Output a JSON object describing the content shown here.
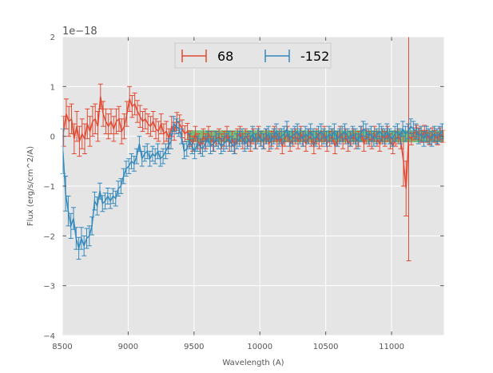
{
  "chart_data": {
    "type": "line",
    "xlabel": "Wavelength (A)",
    "ylabel": "Flux (erg/s/cm^2/A)",
    "y_offset_label": "1e−18",
    "xlim": [
      8500,
      11400
    ],
    "ylim": [
      -4,
      2
    ],
    "x_ticks": [
      8500,
      9000,
      9500,
      10000,
      10500,
      11000
    ],
    "x_tick_labels": [
      "8500",
      "9000",
      "9500",
      "10000",
      "10500",
      "11000"
    ],
    "y_ticks": [
      -4,
      -3,
      -2,
      -1,
      0,
      1,
      2
    ],
    "y_tick_labels": [
      "−4",
      "−3",
      "−2",
      "−1",
      "0",
      "1",
      "2"
    ],
    "grid": true,
    "legend": {
      "placement": "top-center",
      "entries": [
        "68",
        "-152"
      ]
    },
    "band": {
      "x_start": 9450,
      "x_end": 11400,
      "y_low": -0.12,
      "y_high": 0.12,
      "color": "#2ca02c"
    },
    "series": [
      {
        "name": "68",
        "color": "#E24A33",
        "x": [
          8510,
          8530,
          8550,
          8570,
          8590,
          8610,
          8630,
          8650,
          8670,
          8690,
          8710,
          8730,
          8750,
          8770,
          8790,
          8810,
          8830,
          8850,
          8870,
          8890,
          8910,
          8930,
          8950,
          8970,
          8990,
          9010,
          9030,
          9050,
          9070,
          9090,
          9110,
          9130,
          9150,
          9170,
          9190,
          9210,
          9230,
          9250,
          9270,
          9290,
          9310,
          9330,
          9350,
          9370,
          9390,
          9410,
          9430,
          9450,
          9470,
          9490,
          9510,
          9530,
          9550,
          9570,
          9590,
          9610,
          9630,
          9650,
          9670,
          9690,
          9710,
          9730,
          9750,
          9770,
          9790,
          9810,
          9830,
          9850,
          9870,
          9890,
          9910,
          9930,
          9950,
          9970,
          9990,
          10010,
          10030,
          10050,
          10070,
          10090,
          10110,
          10130,
          10150,
          10170,
          10190,
          10210,
          10230,
          10250,
          10270,
          10290,
          10310,
          10330,
          10350,
          10370,
          10390,
          10410,
          10430,
          10450,
          10470,
          10490,
          10510,
          10530,
          10550,
          10570,
          10590,
          10610,
          10630,
          10650,
          10670,
          10690,
          10710,
          10730,
          10750,
          10770,
          10790,
          10810,
          10830,
          10850,
          10870,
          10890,
          10910,
          10930,
          10950,
          10970,
          10990,
          11010,
          11030,
          11050,
          11070,
          11090,
          11110,
          11130,
          11150,
          11170,
          11190,
          11210,
          11230,
          11250,
          11270,
          11290,
          11310,
          11330,
          11350,
          11370,
          11390
        ],
        "y": [
          0.1,
          0.45,
          0.3,
          0.35,
          -0.05,
          0.2,
          -0.1,
          0.05,
          -0.05,
          0.25,
          0.1,
          0.3,
          0.35,
          0.2,
          0.8,
          0.45,
          0.3,
          0.2,
          0.3,
          0.15,
          0.3,
          0.35,
          0.1,
          0.2,
          0.45,
          0.75,
          0.6,
          0.65,
          0.5,
          0.4,
          0.3,
          0.35,
          0.25,
          0.2,
          0.3,
          0.15,
          0.1,
          0.25,
          0.05,
          0.1,
          -0.05,
          0.2,
          0.1,
          0.3,
          0.25,
          0.15,
          0.05,
          0.1,
          -0.05,
          -0.15,
          0.05,
          -0.1,
          -0.2,
          0.0,
          -0.1,
          0.05,
          -0.05,
          -0.15,
          -0.05,
          0.0,
          -0.1,
          -0.05,
          0.05,
          -0.15,
          -0.05,
          -0.2,
          0.0,
          0.05,
          -0.1,
          0.0,
          -0.05,
          -0.15,
          0.0,
          -0.1,
          0.05,
          -0.05,
          -0.1,
          0.0,
          -0.15,
          -0.05,
          0.05,
          -0.1,
          0.0,
          -0.2,
          -0.05,
          0.05,
          -0.15,
          -0.05,
          0.0,
          -0.1,
          0.05,
          -0.05,
          -0.15,
          0.0,
          -0.05,
          -0.2,
          0.0,
          -0.1,
          -0.05,
          0.05,
          -0.15,
          -0.05,
          0.0,
          -0.2,
          -0.05,
          0.05,
          -0.1,
          0.0,
          -0.15,
          -0.05,
          0.0,
          -0.1,
          -0.05,
          0.05,
          -0.15,
          0.0,
          -0.05,
          -0.1,
          0.05,
          -0.05,
          -0.15,
          0.0,
          -0.05,
          0.05,
          -0.1,
          -0.2,
          -0.05,
          0.0,
          -0.1,
          -0.5,
          -1.05,
          0.0,
          -0.05,
          0.05,
          0.1,
          0.05,
          0.0,
          0.1,
          0.0,
          -0.05,
          0.05,
          0.0,
          -0.05,
          0.05,
          0.0
        ],
        "err": [
          0.3,
          0.3,
          0.3,
          0.3,
          0.3,
          0.3,
          0.3,
          0.3,
          0.3,
          0.3,
          0.3,
          0.3,
          0.3,
          0.3,
          0.25,
          0.25,
          0.25,
          0.25,
          0.25,
          0.25,
          0.25,
          0.25,
          0.25,
          0.25,
          0.25,
          0.25,
          0.22,
          0.22,
          0.22,
          0.22,
          0.2,
          0.2,
          0.2,
          0.2,
          0.2,
          0.2,
          0.2,
          0.2,
          0.2,
          0.2,
          0.2,
          0.2,
          0.18,
          0.18,
          0.18,
          0.18,
          0.16,
          0.16,
          0.16,
          0.15,
          0.15,
          0.15,
          0.15,
          0.15,
          0.15,
          0.15,
          0.15,
          0.15,
          0.15,
          0.15,
          0.15,
          0.15,
          0.15,
          0.15,
          0.15,
          0.15,
          0.15,
          0.15,
          0.15,
          0.15,
          0.15,
          0.15,
          0.15,
          0.15,
          0.15,
          0.15,
          0.15,
          0.15,
          0.15,
          0.15,
          0.15,
          0.15,
          0.15,
          0.15,
          0.15,
          0.15,
          0.15,
          0.15,
          0.15,
          0.15,
          0.15,
          0.15,
          0.15,
          0.15,
          0.15,
          0.15,
          0.15,
          0.15,
          0.15,
          0.15,
          0.15,
          0.15,
          0.15,
          0.15,
          0.15,
          0.15,
          0.15,
          0.15,
          0.15,
          0.15,
          0.15,
          0.15,
          0.15,
          0.15,
          0.15,
          0.15,
          0.15,
          0.15,
          0.15,
          0.15,
          0.15,
          0.15,
          0.15,
          0.15,
          0.15,
          0.15,
          0.15,
          0.15,
          0.15,
          0.5,
          0.55,
          2.5,
          0.12,
          0.12,
          0.12,
          0.12,
          0.12,
          0.12,
          0.12,
          0.12,
          0.12,
          0.12,
          0.12,
          0.12,
          0.12
        ]
      },
      {
        "name": "-152",
        "color": "#348ABD",
        "x": [
          8505,
          8525,
          8545,
          8565,
          8585,
          8605,
          8625,
          8645,
          8665,
          8685,
          8705,
          8725,
          8745,
          8765,
          8785,
          8805,
          8825,
          8845,
          8865,
          8885,
          8905,
          8925,
          8945,
          8965,
          8985,
          9005,
          9025,
          9045,
          9065,
          9085,
          9105,
          9125,
          9145,
          9165,
          9185,
          9205,
          9225,
          9245,
          9265,
          9285,
          9305,
          9325,
          9345,
          9365,
          9385,
          9405,
          9425,
          9445,
          9465,
          9485,
          9505,
          9525,
          9545,
          9565,
          9585,
          9605,
          9625,
          9645,
          9665,
          9685,
          9705,
          9725,
          9745,
          9765,
          9785,
          9805,
          9825,
          9845,
          9865,
          9885,
          9905,
          9925,
          9945,
          9965,
          9985,
          10005,
          10025,
          10045,
          10065,
          10085,
          10105,
          10125,
          10145,
          10165,
          10185,
          10205,
          10225,
          10245,
          10265,
          10285,
          10305,
          10325,
          10345,
          10365,
          10385,
          10405,
          10425,
          10445,
          10465,
          10485,
          10505,
          10525,
          10545,
          10565,
          10585,
          10605,
          10625,
          10645,
          10665,
          10685,
          10705,
          10725,
          10745,
          10765,
          10785,
          10805,
          10825,
          10845,
          10865,
          10885,
          10905,
          10925,
          10945,
          10965,
          10985,
          11005,
          11025,
          11045,
          11065,
          11085,
          11105,
          11125,
          11145,
          11165,
          11185,
          11205,
          11225,
          11245,
          11265,
          11285,
          11305,
          11325,
          11345,
          11365,
          11385
        ],
        "y": [
          -0.3,
          -1.15,
          -1.5,
          -1.8,
          -1.65,
          -2.05,
          -2.25,
          -2.05,
          -2.2,
          -2.05,
          -2.0,
          -1.8,
          -1.3,
          -1.4,
          -1.1,
          -1.35,
          -1.3,
          -1.2,
          -1.3,
          -1.2,
          -1.25,
          -1.05,
          -1.0,
          -0.8,
          -0.65,
          -0.6,
          -0.5,
          -0.55,
          -0.4,
          -0.15,
          -0.45,
          -0.35,
          -0.3,
          -0.45,
          -0.35,
          -0.4,
          -0.3,
          -0.45,
          -0.4,
          -0.3,
          -0.2,
          -0.1,
          0.25,
          0.2,
          0.15,
          0.0,
          -0.3,
          -0.25,
          -0.1,
          -0.2,
          -0.3,
          -0.15,
          -0.2,
          -0.25,
          -0.15,
          -0.05,
          -0.2,
          -0.15,
          -0.05,
          -0.1,
          -0.2,
          -0.15,
          -0.1,
          -0.05,
          -0.15,
          -0.2,
          -0.1,
          -0.05,
          0.0,
          -0.15,
          -0.1,
          -0.05,
          0.05,
          -0.1,
          0.0,
          -0.05,
          -0.1,
          0.0,
          0.05,
          -0.1,
          0.0,
          0.1,
          -0.05,
          0.0,
          0.05,
          0.15,
          -0.05,
          0.0,
          0.05,
          0.1,
          0.0,
          -0.05,
          0.05,
          0.0,
          0.1,
          0.0,
          -0.05,
          0.05,
          0.1,
          0.0,
          -0.05,
          0.05,
          0.0,
          0.1,
          -0.05,
          0.0,
          0.05,
          0.1,
          0.0,
          -0.05,
          0.05,
          0.0,
          -0.1,
          0.05,
          0.15,
          0.1,
          0.0,
          0.05,
          -0.05,
          0.0,
          0.1,
          0.05,
          0.0,
          0.1,
          0.0,
          -0.05,
          0.05,
          0.1,
          0.0,
          0.15,
          0.05,
          0.1,
          0.2,
          0.15,
          0.1,
          0.0,
          0.05,
          -0.05,
          0.05,
          0.0,
          -0.05,
          0.05,
          0.0,
          0.05,
          0.1
        ],
        "err": [
          0.45,
          0.35,
          0.3,
          0.25,
          0.22,
          0.22,
          0.22,
          0.22,
          0.2,
          0.2,
          0.2,
          0.18,
          0.18,
          0.18,
          0.16,
          0.16,
          0.16,
          0.16,
          0.15,
          0.15,
          0.15,
          0.15,
          0.15,
          0.15,
          0.15,
          0.15,
          0.15,
          0.15,
          0.15,
          0.15,
          0.15,
          0.15,
          0.15,
          0.15,
          0.15,
          0.15,
          0.15,
          0.15,
          0.15,
          0.15,
          0.15,
          0.15,
          0.15,
          0.15,
          0.15,
          0.15,
          0.15,
          0.15,
          0.15,
          0.15,
          0.15,
          0.15,
          0.15,
          0.15,
          0.15,
          0.15,
          0.15,
          0.15,
          0.15,
          0.15,
          0.15,
          0.15,
          0.15,
          0.15,
          0.15,
          0.15,
          0.15,
          0.15,
          0.15,
          0.15,
          0.15,
          0.15,
          0.15,
          0.15,
          0.15,
          0.15,
          0.15,
          0.15,
          0.15,
          0.15,
          0.15,
          0.15,
          0.15,
          0.15,
          0.15,
          0.15,
          0.15,
          0.15,
          0.15,
          0.15,
          0.15,
          0.15,
          0.15,
          0.15,
          0.15,
          0.15,
          0.15,
          0.15,
          0.15,
          0.15,
          0.15,
          0.15,
          0.15,
          0.15,
          0.15,
          0.15,
          0.15,
          0.15,
          0.15,
          0.15,
          0.15,
          0.15,
          0.15,
          0.15,
          0.15,
          0.15,
          0.15,
          0.15,
          0.15,
          0.15,
          0.15,
          0.15,
          0.15,
          0.15,
          0.15,
          0.15,
          0.15,
          0.15,
          0.15,
          0.15,
          0.15,
          0.15,
          0.15,
          0.15,
          0.15,
          0.15,
          0.15,
          0.15,
          0.15,
          0.15,
          0.15,
          0.15,
          0.15,
          0.15,
          0.15
        ]
      }
    ]
  }
}
